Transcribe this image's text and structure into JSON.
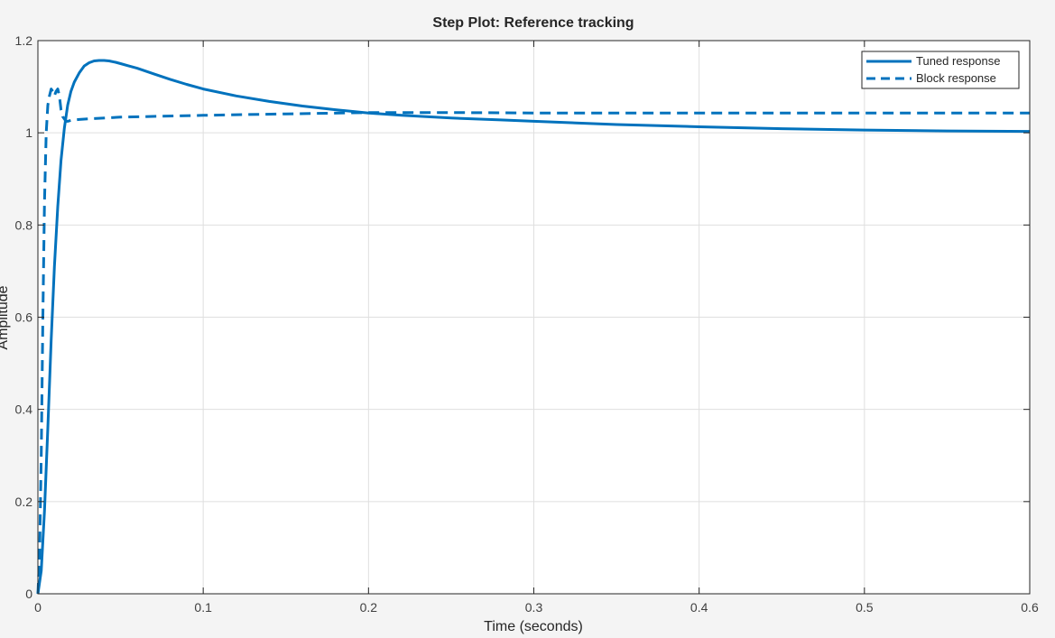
{
  "chart_data": {
    "type": "line",
    "title": "Step Plot: Reference tracking",
    "xlabel": "Time (seconds)",
    "ylabel": "Amplitude",
    "xlim": [
      0,
      0.6
    ],
    "ylim": [
      0,
      1.2
    ],
    "xticks": [
      0,
      0.1,
      0.2,
      0.3,
      0.4,
      0.5,
      0.6
    ],
    "xtick_labels": [
      "0",
      "0.1",
      "0.2",
      "0.3",
      "0.4",
      "0.5",
      "0.6"
    ],
    "yticks": [
      0,
      0.2,
      0.4,
      0.6,
      0.8,
      1,
      1.2
    ],
    "ytick_labels": [
      "0",
      "0.2",
      "0.4",
      "0.6",
      "0.8",
      "1",
      "1.2"
    ],
    "grid": true,
    "legend_position": "top-right",
    "series": [
      {
        "name": "Tuned response",
        "style": "solid",
        "color": "#0072bd",
        "x": [
          0,
          0.002,
          0.004,
          0.006,
          0.008,
          0.01,
          0.012,
          0.014,
          0.016,
          0.018,
          0.02,
          0.022,
          0.025,
          0.028,
          0.031,
          0.034,
          0.037,
          0.04,
          0.043,
          0.047,
          0.05,
          0.055,
          0.06,
          0.07,
          0.08,
          0.09,
          0.1,
          0.12,
          0.14,
          0.16,
          0.18,
          0.2,
          0.22,
          0.25,
          0.28,
          0.3,
          0.35,
          0.4,
          0.45,
          0.5,
          0.55,
          0.6
        ],
        "y": [
          0,
          0.05,
          0.18,
          0.36,
          0.55,
          0.71,
          0.84,
          0.94,
          1.01,
          1.06,
          1.09,
          1.11,
          1.13,
          1.145,
          1.152,
          1.156,
          1.157,
          1.157,
          1.156,
          1.153,
          1.15,
          1.145,
          1.14,
          1.128,
          1.116,
          1.105,
          1.095,
          1.08,
          1.068,
          1.058,
          1.05,
          1.043,
          1.038,
          1.032,
          1.028,
          1.025,
          1.018,
          1.013,
          1.009,
          1.006,
          1.004,
          1.003
        ]
      },
      {
        "name": "Block response",
        "style": "dashed",
        "color": "#0072bd",
        "x": [
          0,
          0.001,
          0.002,
          0.003,
          0.004,
          0.005,
          0.006,
          0.007,
          0.008,
          0.009,
          0.01,
          0.011,
          0.012,
          0.013,
          0.014,
          0.015,
          0.016,
          0.017,
          0.018,
          0.02,
          0.025,
          0.03,
          0.05,
          0.1,
          0.15,
          0.2,
          0.25,
          0.3,
          0.35,
          0.4,
          0.45,
          0.5,
          0.55,
          0.6
        ],
        "y": [
          0,
          0.08,
          0.3,
          0.6,
          0.85,
          1.0,
          1.06,
          1.08,
          1.095,
          1.09,
          1.08,
          1.09,
          1.095,
          1.08,
          1.05,
          1.035,
          1.03,
          1.025,
          1.025,
          1.027,
          1.029,
          1.03,
          1.034,
          1.038,
          1.041,
          1.044,
          1.044,
          1.043,
          1.043,
          1.043,
          1.043,
          1.043,
          1.043,
          1.043
        ]
      }
    ]
  }
}
